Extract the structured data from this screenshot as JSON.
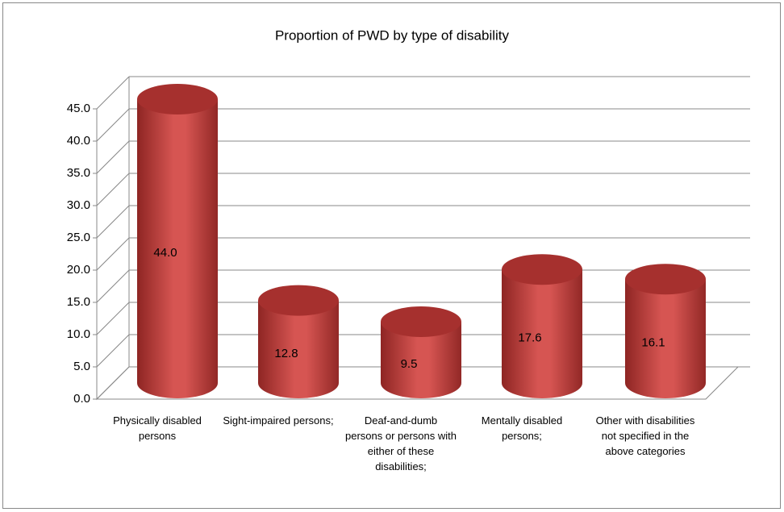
{
  "chart_data": {
    "type": "bar3d",
    "title": "Proportion of PWD by type of disability",
    "categories": [
      "Physically disabled persons",
      "Sight-impaired persons;",
      "Deaf-and-dumb persons or persons with either of these disabilities;",
      "Mentally disabled persons;",
      "Other with disabilities not specified in the above categories"
    ],
    "values": [
      44.0,
      12.8,
      9.5,
      17.6,
      16.1
    ],
    "value_labels": [
      "44.0",
      "12.8",
      "9.5",
      "17.6",
      "16.1"
    ],
    "color": "#c0413f",
    "ylim": [
      0,
      45
    ],
    "yticks": [
      {
        "value": 0,
        "label": "0.0"
      },
      {
        "value": 5,
        "label": "5.0"
      },
      {
        "value": 10,
        "label": "10.0"
      },
      {
        "value": 15,
        "label": "15.0"
      },
      {
        "value": 20,
        "label": "20.0"
      },
      {
        "value": 25,
        "label": "25.0"
      },
      {
        "value": 30,
        "label": "30.0"
      },
      {
        "value": 35,
        "label": "35.0"
      },
      {
        "value": 40,
        "label": "40.0"
      },
      {
        "value": 45,
        "label": "45.0"
      }
    ],
    "grid": true
  }
}
